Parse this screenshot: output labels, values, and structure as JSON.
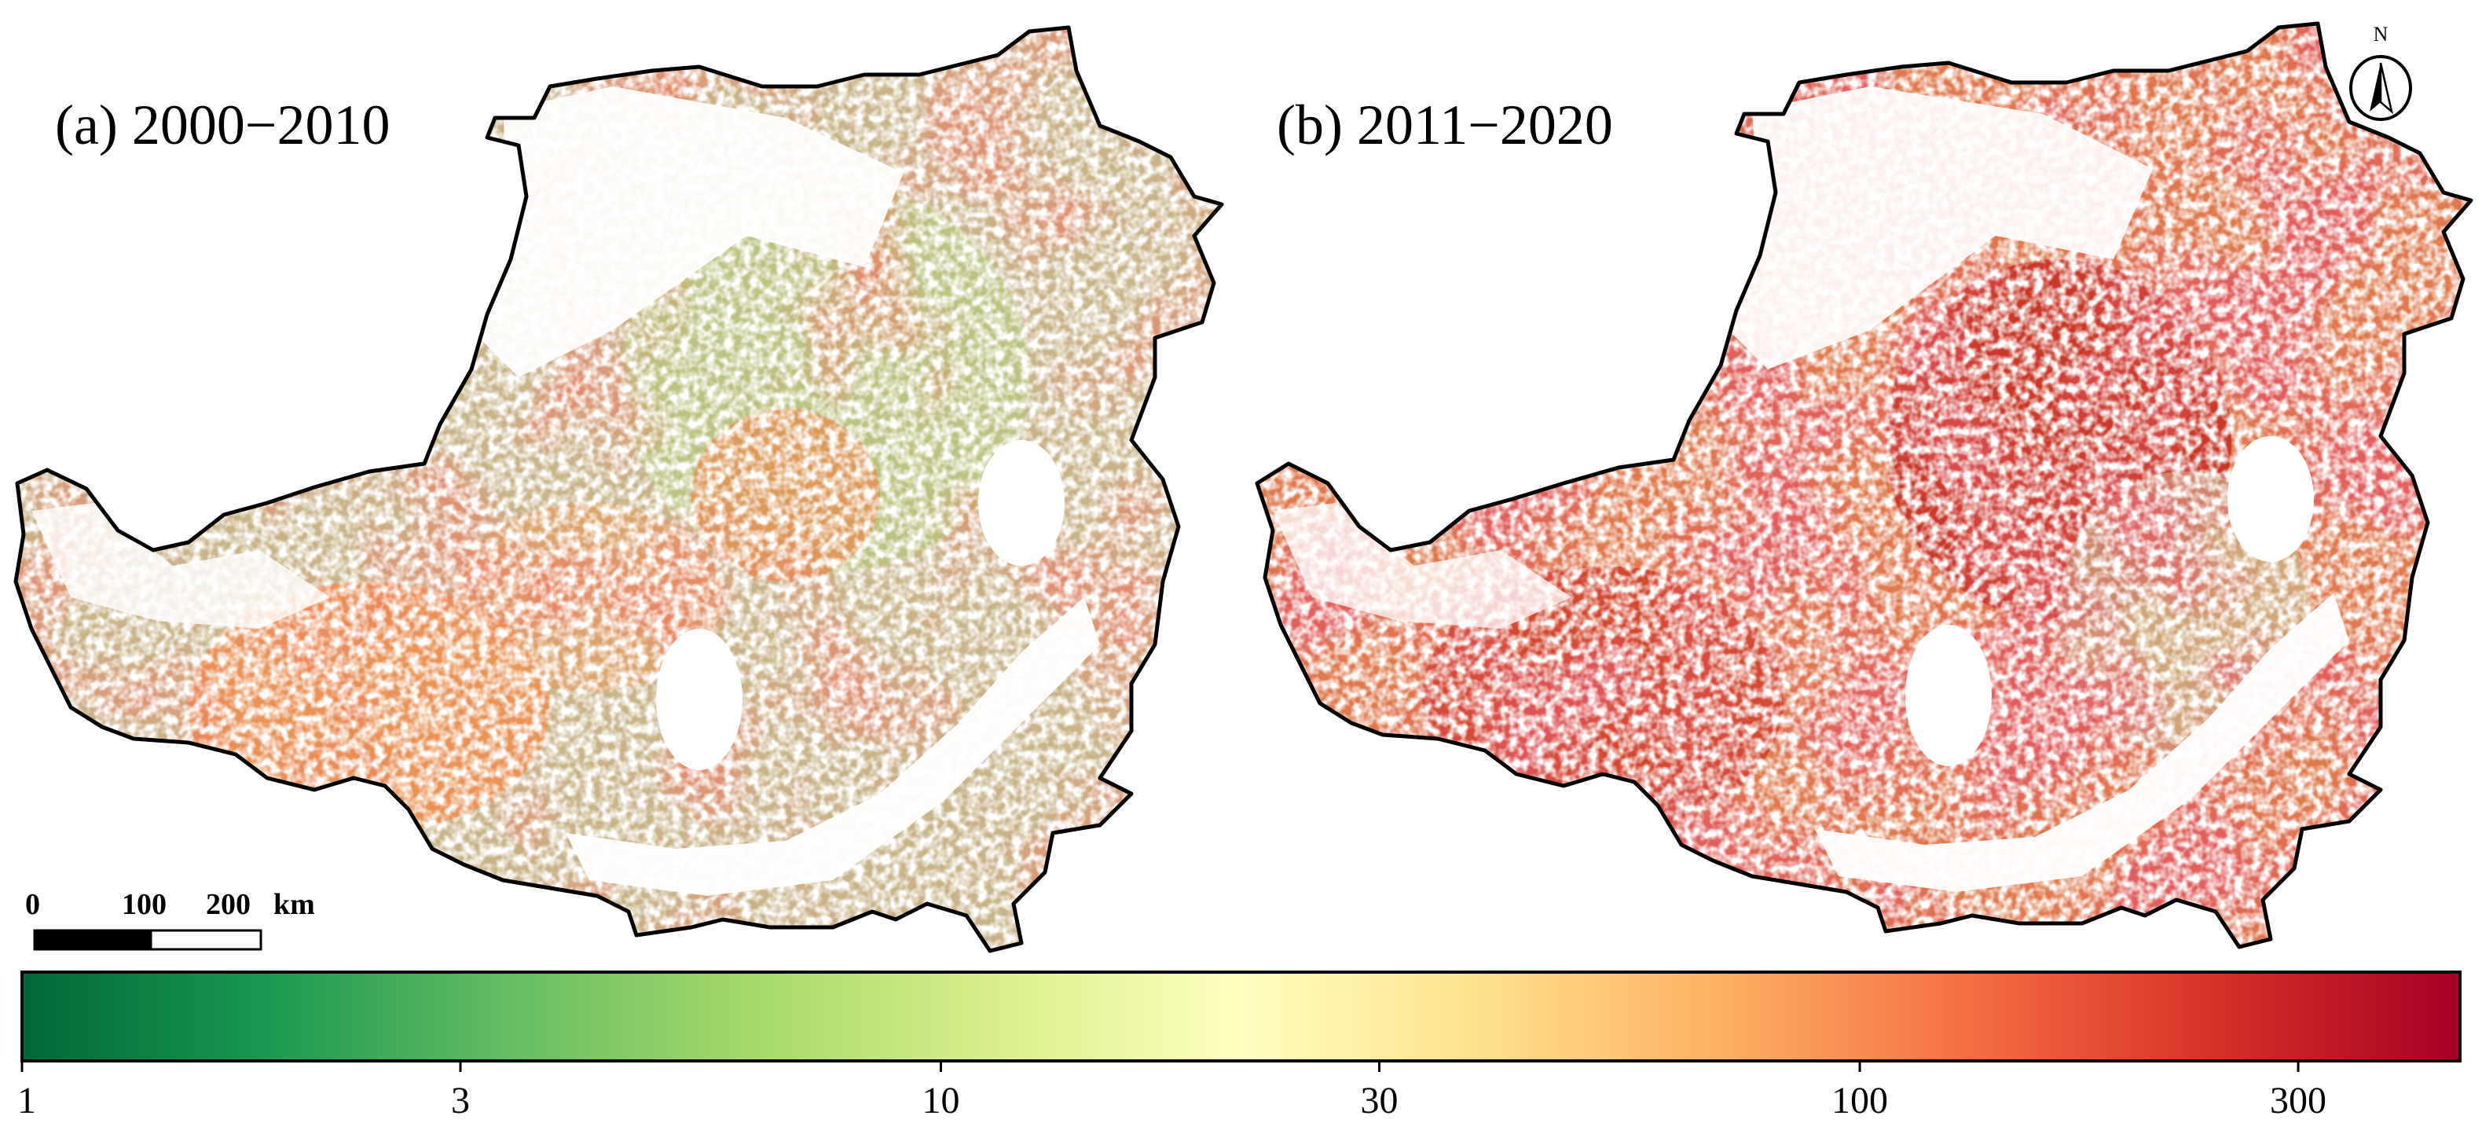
{
  "panels": [
    {
      "title": "(a) 2000−2010",
      "intensity": 0.42,
      "hotspot_color": "#d7301f"
    },
    {
      "title": "(b) 2011−2020",
      "intensity": 0.78,
      "hotspot_color": "#b2182b"
    }
  ],
  "north_arrow": {
    "letter": "N",
    "icon": "north-arrow-icon"
  },
  "scale_bar": {
    "labels": [
      "0",
      "100",
      "200"
    ],
    "unit": "km"
  },
  "colorbar": {
    "scale": "log",
    "colors": [
      "#006837",
      "#1a9850",
      "#66bd63",
      "#a6d96a",
      "#d9ef8b",
      "#ffffbf",
      "#fee08b",
      "#fdae61",
      "#f46d43",
      "#d73027",
      "#a50026"
    ],
    "range": [
      1,
      450
    ],
    "ticks": [
      1,
      3,
      10,
      30,
      100,
      300
    ],
    "tick_labels": [
      "1",
      "3",
      "10",
      "30",
      "100",
      "300"
    ]
  },
  "colors": {
    "outline": "#000000",
    "background": "#ffffff",
    "low_cover": "#b9c3a6"
  }
}
